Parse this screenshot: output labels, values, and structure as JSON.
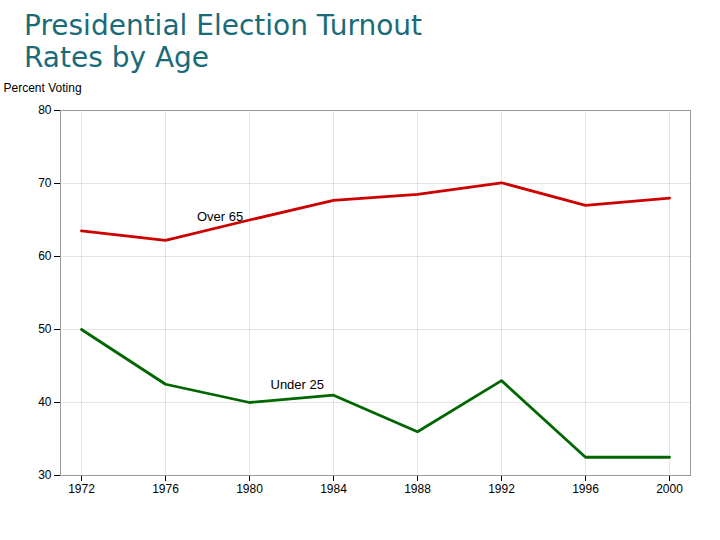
{
  "chart_data": {
    "type": "line",
    "title": "Presidential Election Turnout",
    "subtitle": "Rates by Age",
    "ylabel": "Percent Voting",
    "x": [
      1972,
      1976,
      1980,
      1984,
      1988,
      1992,
      1996,
      2000
    ],
    "series": [
      {
        "name": "Over 65",
        "color": "#cc0000",
        "values": [
          63.5,
          62.2,
          65.0,
          67.7,
          68.5,
          70.1,
          67.0,
          68.0
        ]
      },
      {
        "name": "Under 25",
        "color": "#006600",
        "values": [
          50.0,
          42.5,
          40.0,
          41.0,
          36.0,
          43.0,
          32.5,
          32.5
        ]
      }
    ],
    "annotations": [
      {
        "text": "Over 65",
        "x": 1977.5,
        "y": 64.8
      },
      {
        "text": "Under 25",
        "x": 1981.0,
        "y": 41.8
      }
    ],
    "xlim": [
      1971,
      2001
    ],
    "xticks": [
      1972,
      1976,
      1980,
      1984,
      1988,
      1992,
      1996,
      2000
    ],
    "ylim": [
      30,
      80
    ],
    "yticks": [
      30,
      40,
      50,
      60,
      70,
      80
    ],
    "grid": true
  }
}
